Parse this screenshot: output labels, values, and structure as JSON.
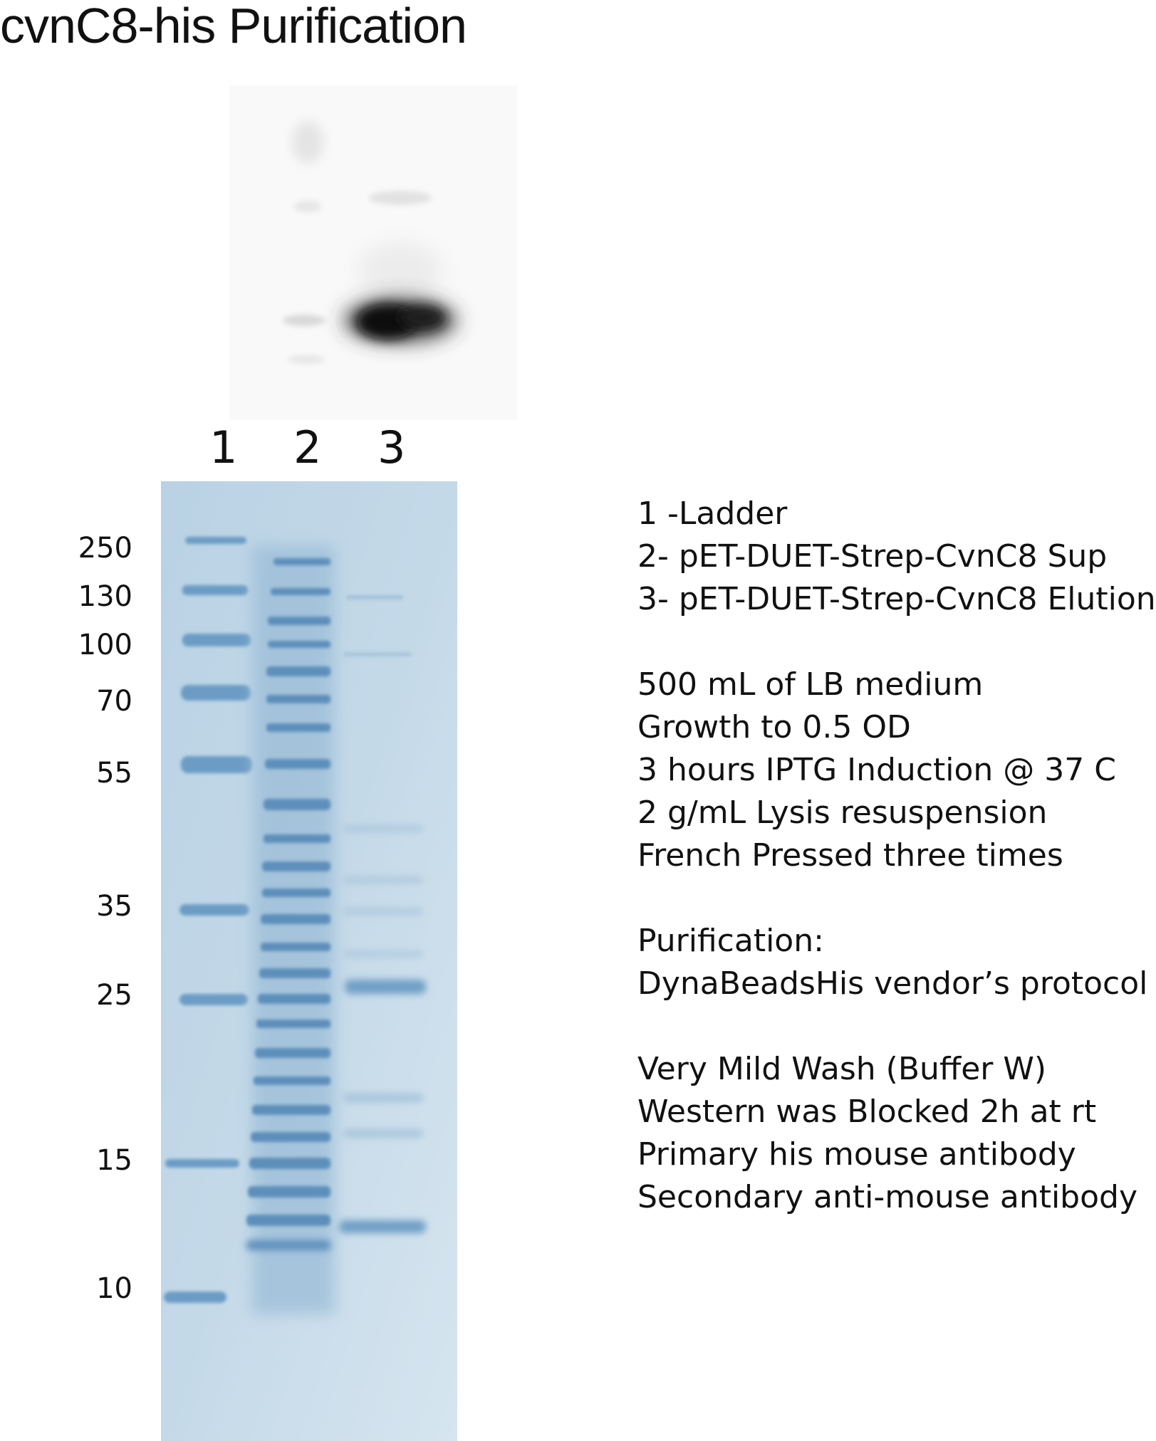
{
  "title": "cvnC8-his Purification",
  "lanes": [
    "1",
    "2",
    "3"
  ],
  "mw_markers": [
    "250",
    "130",
    "100",
    "70",
    "55",
    "35",
    "25",
    "15",
    "10"
  ],
  "legend": [
    "1 -Ladder",
    "2- pET-DUET-Strep-CvnC8 Sup",
    "3- pET-DUET-Strep-CvnC8  Elution"
  ],
  "conditions": [
    "500 mL of LB medium",
    "Growth to 0.5 OD",
    "3 hours IPTG Induction @ 37 C",
    "2 g/mL Lysis resuspension",
    "French Pressed three times"
  ],
  "purification": [
    "Purification:",
    "DynaBeadsHis vendor’s protocol"
  ],
  "western": [
    "Very Mild Wash (Buffer W)",
    "Western was Blocked 2h at rt",
    "Primary his mouse antibody",
    "Secondary anti-mouse antibody"
  ],
  "colors": {
    "gel_base": "#c3d9e8",
    "gel_band": "#6f9fc6",
    "blot_band": "#0a0a0a"
  }
}
